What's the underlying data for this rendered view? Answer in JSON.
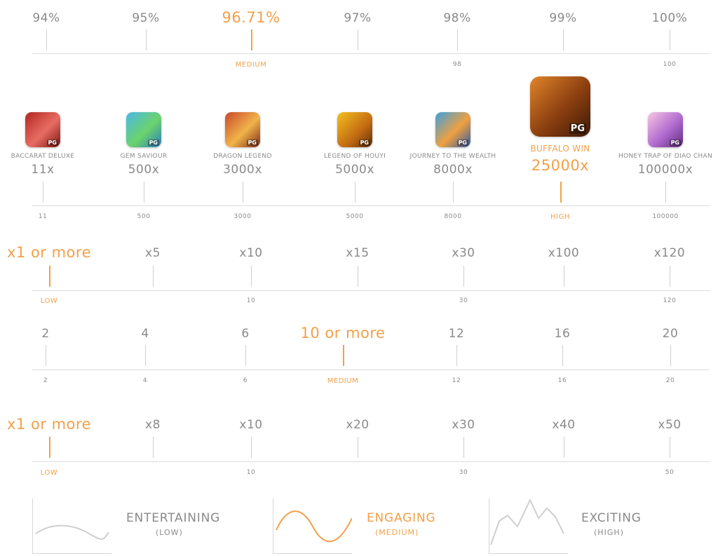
{
  "colors": {
    "accent": "#f2a04a",
    "muted": "#8a8a8a",
    "line": "#dcdcdc"
  },
  "rtp_scale": {
    "labels": [
      "94%",
      "95%",
      "96.71%",
      "97%",
      "98%",
      "99%",
      "100%"
    ],
    "highlight_index": 2,
    "bottom_labels": [
      "",
      "",
      "MEDIUM",
      "",
      "98",
      "",
      "100"
    ]
  },
  "games": [
    {
      "name": "BACCARAT DELUXE",
      "multiplier": "11x",
      "tick": "11",
      "icon": "baccarat-icon",
      "badge": "PG"
    },
    {
      "name": "GEM SAVIOUR",
      "multiplier": "500x",
      "tick": "500",
      "icon": "gem-saviour-icon",
      "badge": "PG"
    },
    {
      "name": "DRAGON LEGEND",
      "multiplier": "3000x",
      "tick": "3000",
      "icon": "dragon-icon",
      "badge": "PG"
    },
    {
      "name": "LEGEND OF HOUYI",
      "multiplier": "5000x",
      "tick": "5000",
      "icon": "archer-icon",
      "badge": "PG"
    },
    {
      "name": "JOURNEY TO THE WEALTH",
      "multiplier": "8000x",
      "tick": "8000",
      "icon": "monkey-icon",
      "badge": "PG"
    },
    {
      "name": "BUFFALO WIN",
      "multiplier": "25000x",
      "tick": "HIGH",
      "icon": "buffalo-icon",
      "badge": "PG",
      "highlight": true
    },
    {
      "name": "HONEY TRAP OF DIAO CHAN",
      "multiplier": "100000x",
      "tick": "100000",
      "icon": "diao-chan-icon",
      "badge": "PG"
    }
  ],
  "scale_a": {
    "labels": [
      "x1 or more",
      "x5",
      "x10",
      "x15",
      "x30",
      "x100",
      "x120"
    ],
    "highlight_index": 0,
    "bottom_labels": [
      "LOW",
      "",
      "10",
      "",
      "30",
      "",
      "120"
    ]
  },
  "scale_b": {
    "labels": [
      "2",
      "4",
      "6",
      "10 or more",
      "12",
      "16",
      "20"
    ],
    "highlight_index": 3,
    "bottom_labels": [
      "2",
      "4",
      "6",
      "MEDIUM",
      "12",
      "16",
      "20"
    ]
  },
  "scale_c": {
    "labels": [
      "x1 or more",
      "x8",
      "x10",
      "x20",
      "x30",
      "x40",
      "x50"
    ],
    "highlight_index": 0,
    "bottom_labels": [
      "LOW",
      "",
      "10",
      "",
      "30",
      "",
      "50"
    ]
  },
  "volatility": [
    {
      "title": "ENTERTAINING",
      "sub": "(LOW)",
      "highlight": false
    },
    {
      "title": "ENGAGING",
      "sub": "(MEDIUM)",
      "highlight": true
    },
    {
      "title": "EXCITING",
      "sub": "(HIGH)",
      "highlight": false
    }
  ]
}
